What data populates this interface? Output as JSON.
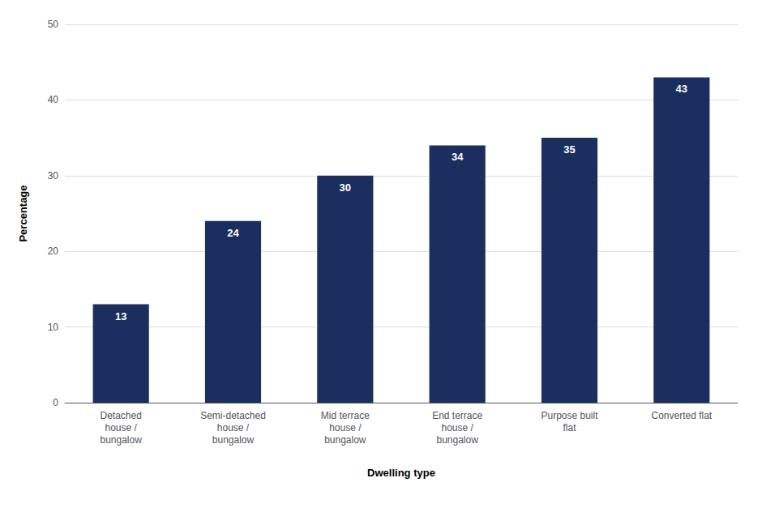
{
  "chart_data": {
    "type": "bar",
    "categories": [
      "Detached\nhouse /\nbungalow",
      "Semi-detached\nhouse /\nbungalow",
      "Mid terrace\nhouse /\nbungalow",
      "End terrace\nhouse /\nbungalow",
      "Purpose built\nflat",
      "Converted flat"
    ],
    "values": [
      13,
      24,
      30,
      34,
      35,
      43
    ],
    "color": "#1b2f5e",
    "xlabel": "Dwelling type",
    "ylabel": "Percentage",
    "ylim": [
      0,
      50
    ],
    "yticks": [
      0,
      10,
      20,
      30,
      40,
      50
    ],
    "grid": true,
    "data_labels": true
  }
}
